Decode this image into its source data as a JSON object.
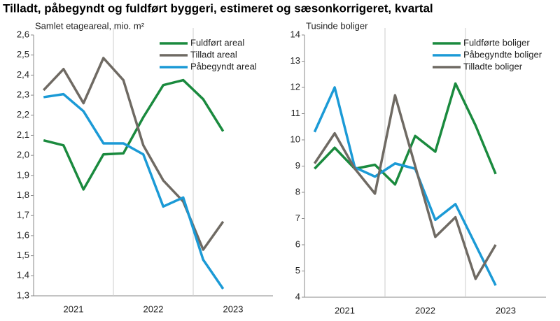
{
  "title": "Tilladt, påbegyndt og fuldført byggeri, estimeret og sæsonkorrigeret, kvartal",
  "chart_data": [
    {
      "type": "line",
      "y_label": "Samlet etageareal, mio. m²",
      "categories": [
        "2021",
        null,
        null,
        null,
        "2022",
        null,
        null,
        null,
        "2023",
        null
      ],
      "ylim": [
        1.3,
        2.6
      ],
      "yticks": [
        {
          "value": 1.3,
          "label": "1,3"
        },
        {
          "value": 1.4,
          "label": "1,4"
        },
        {
          "value": 1.5,
          "label": "1,5"
        },
        {
          "value": 1.6,
          "label": "1,6"
        },
        {
          "value": 1.7,
          "label": "1,7"
        },
        {
          "value": 1.8,
          "label": "1,8"
        },
        {
          "value": 1.9,
          "label": "1,9"
        },
        {
          "value": 2.0,
          "label": "2,0"
        },
        {
          "value": 2.1,
          "label": "2,1"
        },
        {
          "value": 2.2,
          "label": "2,2"
        },
        {
          "value": 2.3,
          "label": "2,3"
        },
        {
          "value": 2.4,
          "label": "2,4"
        },
        {
          "value": 2.5,
          "label": "2,5"
        },
        {
          "value": 2.6,
          "label": "2,6"
        }
      ],
      "series": [
        {
          "name": "Fuldført areal",
          "color": "#1a8a3e",
          "values": [
            2.075,
            2.05,
            1.83,
            2.005,
            2.01,
            2.19,
            2.35,
            2.375,
            2.28,
            2.12
          ]
        },
        {
          "name": "Tilladt areal",
          "color": "#6f6a63",
          "values": [
            2.325,
            2.43,
            2.26,
            2.485,
            2.375,
            2.05,
            1.875,
            1.77,
            1.53,
            1.67
          ]
        },
        {
          "name": "Påbegyndt areal",
          "color": "#1b9ad6",
          "values": [
            2.29,
            2.305,
            2.22,
            2.06,
            2.06,
            2.005,
            1.745,
            1.79,
            1.48,
            1.335
          ]
        }
      ]
    },
    {
      "type": "line",
      "y_label": "Tusinde boliger",
      "categories": [
        "2021",
        null,
        null,
        null,
        "2022",
        null,
        null,
        null,
        "2023",
        null
      ],
      "ylim": [
        4,
        14
      ],
      "yticks": [
        4,
        5,
        6,
        7,
        8,
        9,
        10,
        11,
        12,
        13,
        14
      ],
      "series": [
        {
          "name": "Fuldførte boliger",
          "color": "#1a8a3e",
          "values": [
            8.9,
            9.7,
            8.9,
            9.05,
            8.3,
            10.15,
            9.55,
            12.15,
            10.55,
            8.7
          ]
        },
        {
          "name": "Påbegyndte boliger",
          "color": "#1b9ad6",
          "values": [
            10.3,
            12.0,
            8.95,
            8.6,
            9.1,
            8.9,
            6.95,
            7.55,
            6.0,
            4.45
          ]
        },
        {
          "name": "Tilladte boliger",
          "color": "#6f6a63",
          "values": [
            9.1,
            10.25,
            8.9,
            7.95,
            11.7,
            9.0,
            6.3,
            7.05,
            4.7,
            6.0
          ]
        }
      ]
    }
  ]
}
